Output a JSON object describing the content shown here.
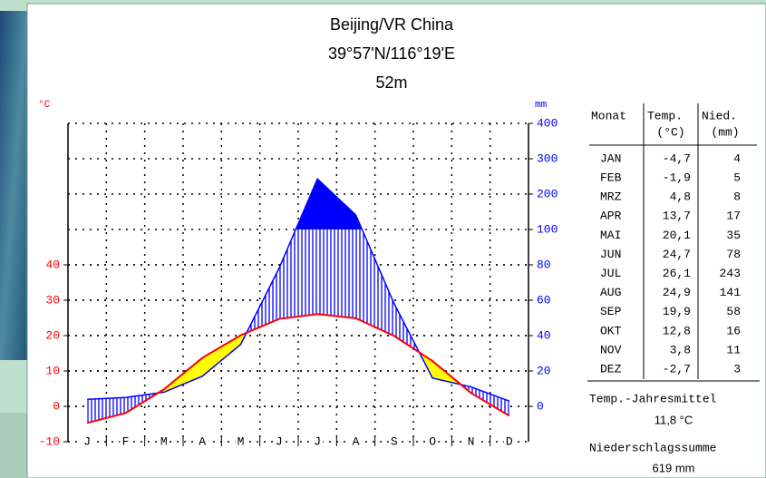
{
  "chart_data": {
    "type": "climate",
    "title": "Beijing/VR China",
    "subtitle": "39°57'N/116°19'E",
    "elevation": "52m",
    "ylabel": "°C",
    "y2label": "mm",
    "categories": [
      "J",
      "F",
      "M",
      "A",
      "M",
      "J",
      "J",
      "A",
      "S",
      "O",
      "N",
      "D"
    ],
    "series": [
      {
        "color": "#ff0000",
        "values": [
          -4.7,
          -1.9,
          4.8,
          13.7,
          20.1,
          24.7,
          26.1,
          24.9,
          19.9,
          12.8,
          3.8,
          -2.7
        ],
        "value_labels": [
          "-4,7",
          "-1,9",
          "4,8",
          "13,7",
          "20,1",
          "24,7",
          "26,1",
          "24,9",
          "19,9",
          "12,8",
          "3,8",
          "-2,7"
        ]
      },
      {
        "color": "#0000ff",
        "axis": "y2",
        "values": [
          4,
          5,
          8,
          17,
          35,
          78,
          243,
          141,
          58,
          16,
          11,
          3
        ]
      }
    ],
    "ylim": [
      -10,
      80
    ],
    "yticks": [
      -10,
      0,
      10,
      20,
      30,
      40
    ],
    "y2lim": [
      -20,
      400
    ],
    "y2ticks": [
      0,
      20,
      40,
      60,
      80,
      100,
      200,
      300,
      400
    ],
    "y2_break": 100,
    "y2_compression": 5,
    "grid": true,
    "arid_color": "#ffff00",
    "humid_color": "#0000ff"
  },
  "table": {
    "header": {
      "month": "Monat",
      "temp": "Temp.",
      "temp_unit": "(°C)",
      "precip": "Nied.",
      "precip_unit": "(mm)"
    },
    "months": [
      "JAN",
      "FEB",
      "MRZ",
      "APR",
      "MAI",
      "JUN",
      "JUL",
      "AUG",
      "SEP",
      "OKT",
      "NOV",
      "DEZ"
    ]
  },
  "summary": {
    "temp_label": "Temp.-Jahresmittel",
    "temp_value": "11,8 °C",
    "precip_label": "Niederschlagssumme",
    "precip_value": "619 mm"
  }
}
